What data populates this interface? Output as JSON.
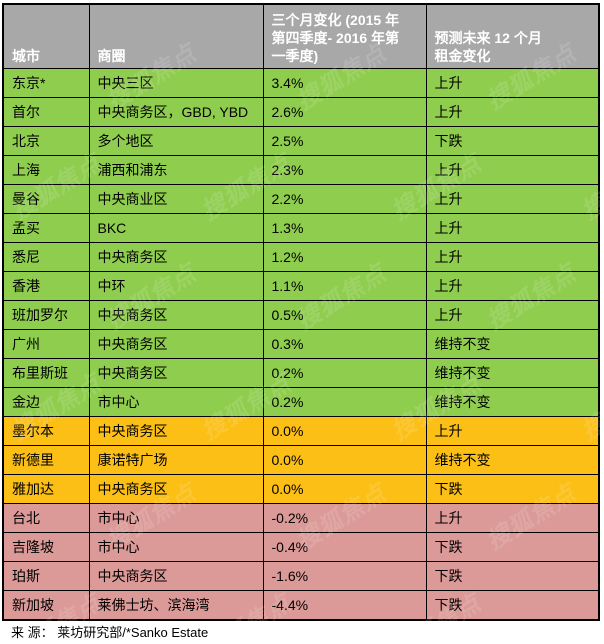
{
  "chart_data": {
    "type": "table",
    "columns": [
      "城市",
      "商圈",
      "三个月变化 (2015 年第四季度- 2016 年第一季度)",
      "预测未来 12 个月租金变化"
    ],
    "rows": [
      [
        "东京*",
        "中央三区",
        "3.4%",
        "上升"
      ],
      [
        "首尔",
        "中央商务区，GBD, YBD",
        "2.6%",
        "上升"
      ],
      [
        "北京",
        "多个地区",
        "2.5%",
        "下跌"
      ],
      [
        "上海",
        "浦西和浦东",
        "2.3%",
        "上升"
      ],
      [
        "曼谷",
        "中央商业区",
        "2.2%",
        "上升"
      ],
      [
        "孟买",
        "BKC",
        "1.3%",
        "上升"
      ],
      [
        "悉尼",
        "中央商务区",
        "1.2%",
        "上升"
      ],
      [
        "香港",
        "中环",
        "1.1%",
        "上升"
      ],
      [
        "班加罗尔",
        "中央商务区",
        "0.5%",
        "上升"
      ],
      [
        "广州",
        "中央商务区",
        "0.3%",
        "维持不变"
      ],
      [
        "布里斯班",
        "中央商务区",
        "0.2%",
        "维持不变"
      ],
      [
        "金边",
        "市中心",
        "0.2%",
        "维持不变"
      ],
      [
        "墨尔本",
        "中央商务区",
        "0.0%",
        "上升"
      ],
      [
        "新德里",
        "康诺特广场",
        "0.0%",
        "维持不变"
      ],
      [
        "雅加达",
        "中央商务区",
        "0.0%",
        "下跌"
      ],
      [
        "台北",
        "市中心",
        "-0.2%",
        "上升"
      ],
      [
        "吉隆坡",
        "市中心",
        "-0.4%",
        "下跌"
      ],
      [
        "珀斯",
        "中央商务区",
        "-1.6%",
        "下跌"
      ],
      [
        "新加坡",
        "莱佛士坊、滨海湾",
        "-4.4%",
        "下跌"
      ]
    ],
    "source": "来 源： 莱坊研究部/*Sanko Estate"
  },
  "table": {
    "headers": {
      "city": "城市",
      "district": "商圈",
      "change": "三个月变化 (2015 年\n第四季度- 2016 年第\n一季度)",
      "forecast": "预测未来 12 个月\n租金变化"
    },
    "rows": [
      {
        "city": "东京*",
        "district": "中央三区",
        "change": "3.4%",
        "forecast": "上升",
        "tone": "green"
      },
      {
        "city": "首尔",
        "district": "中央商务区，GBD, YBD",
        "change": "2.6%",
        "forecast": "上升",
        "tone": "green"
      },
      {
        "city": "北京",
        "district": "多个地区",
        "change": "2.5%",
        "forecast": "下跌",
        "tone": "green"
      },
      {
        "city": "上海",
        "district": "浦西和浦东",
        "change": "2.3%",
        "forecast": "上升",
        "tone": "green"
      },
      {
        "city": "曼谷",
        "district": "中央商业区",
        "change": "2.2%",
        "forecast": "上升",
        "tone": "green"
      },
      {
        "city": "孟买",
        "district": "BKC",
        "change": "1.3%",
        "forecast": "上升",
        "tone": "green"
      },
      {
        "city": "悉尼",
        "district": "中央商务区",
        "change": "1.2%",
        "forecast": "上升",
        "tone": "green"
      },
      {
        "city": "香港",
        "district": "中环",
        "change": "1.1%",
        "forecast": "上升",
        "tone": "green"
      },
      {
        "city": "班加罗尔",
        "district": "中央商务区",
        "change": "0.5%",
        "forecast": "上升",
        "tone": "green"
      },
      {
        "city": "广州",
        "district": "中央商务区",
        "change": "0.3%",
        "forecast": "维持不变",
        "tone": "green"
      },
      {
        "city": "布里斯班",
        "district": "中央商务区",
        "change": "0.2%",
        "forecast": "维持不变",
        "tone": "green"
      },
      {
        "city": "金边",
        "district": "市中心",
        "change": "0.2%",
        "forecast": "维持不变",
        "tone": "green"
      },
      {
        "city": "墨尔本",
        "district": "中央商务区",
        "change": "0.0%",
        "forecast": "上升",
        "tone": "amber"
      },
      {
        "city": "新德里",
        "district": "康诺特广场",
        "change": "0.0%",
        "forecast": "维持不变",
        "tone": "amber"
      },
      {
        "city": "雅加达",
        "district": "中央商务区",
        "change": "0.0%",
        "forecast": "下跌",
        "tone": "amber"
      },
      {
        "city": "台北",
        "district": "市中心",
        "change": "-0.2%",
        "forecast": "上升",
        "tone": "rose"
      },
      {
        "city": "吉隆坡",
        "district": "市中心",
        "change": "-0.4%",
        "forecast": "下跌",
        "tone": "rose"
      },
      {
        "city": "珀斯",
        "district": "中央商务区",
        "change": "-1.6%",
        "forecast": "下跌",
        "tone": "rose"
      },
      {
        "city": "新加坡",
        "district": "莱佛士坊、滨海湾",
        "change": "-4.4%",
        "forecast": "下跌",
        "tone": "rose"
      }
    ]
  },
  "source_note": "来 源： 莱坊研究部/*Sanko Estate",
  "watermark": {
    "text": "搜狐焦点",
    "color": "#ffffff"
  },
  "colors": {
    "header_bg": "#a8a8a8",
    "rise_bg": "#8fcd4e",
    "flat_bg": "#fcbf16",
    "fall_bg": "#db9a97",
    "border": "#000000",
    "header_text": "#ffffff",
    "cell_text": "#000000"
  }
}
